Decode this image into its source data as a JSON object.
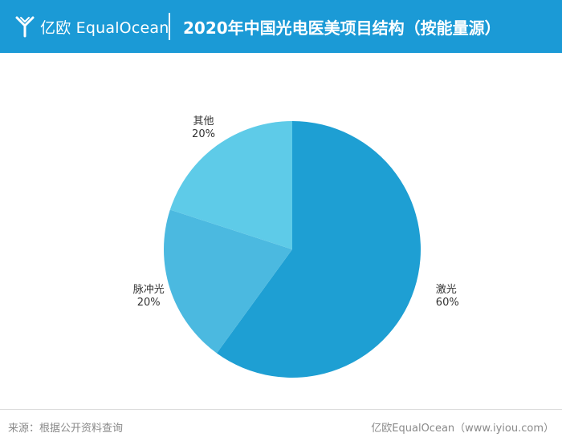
{
  "header": {
    "logo_text": "亿欧 EqualOcean",
    "title": "2020年中国光电医美项目结构（按能量源）"
  },
  "colors": {
    "header_bg": "#1b9ad6",
    "slices": [
      "#1e9fd3",
      "#4bb9e0",
      "#5ecbe8"
    ]
  },
  "chart_data": {
    "type": "pie",
    "title": "2020年中国光电医美项目结构（按能量源）",
    "slices": [
      {
        "label": "激光",
        "value": 60,
        "value_label": "60%"
      },
      {
        "label": "脉冲光",
        "value": 20,
        "value_label": "20%"
      },
      {
        "label": "其他",
        "value": 20,
        "value_label": "20%"
      }
    ],
    "start_angle": "12 o'clock",
    "direction": "clockwise",
    "legend": "none (labels beside slices)"
  },
  "footer": {
    "source": "来源：根据公开资料查询",
    "credit": "亿欧EqualOcean（www.iyiou.com）"
  }
}
